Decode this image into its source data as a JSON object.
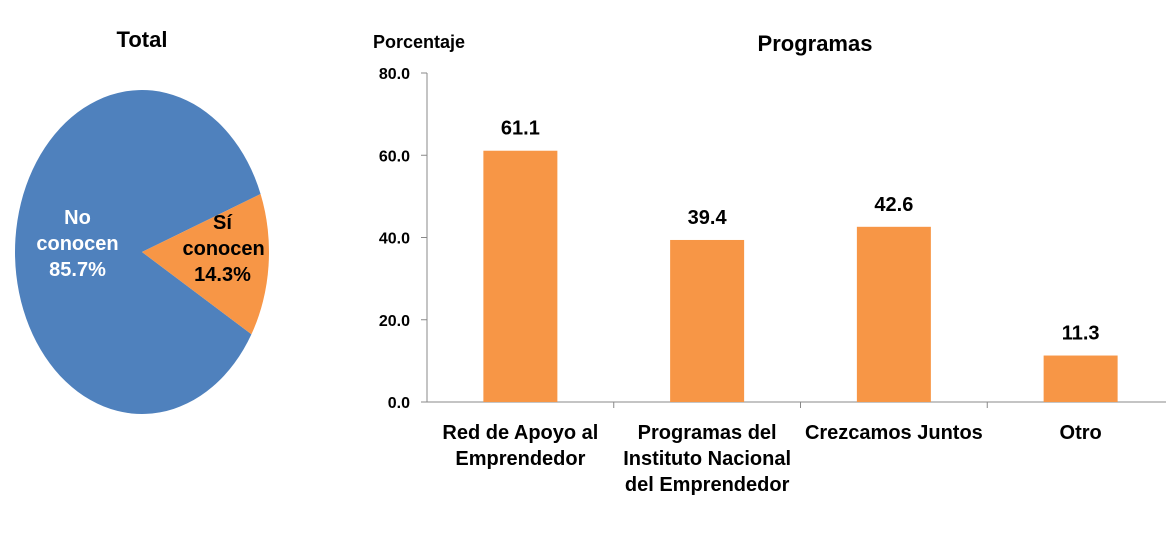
{
  "chart_data": [
    {
      "type": "pie",
      "title": "Total",
      "categories": [
        "No conocen",
        "Sí conocen"
      ],
      "values": [
        85.7,
        14.3
      ],
      "value_labels": [
        "85.7%",
        "14.3%"
      ],
      "colors": [
        "#4f81bd",
        "#f79646"
      ]
    },
    {
      "type": "bar",
      "title": "Programas",
      "y_label": "Porcentaje",
      "categories": [
        "Red de Apoyo al Emprendedor",
        "Programas del Instituto Nacional del Emprendedor",
        "Crezcamos Juntos",
        "Otro"
      ],
      "values": [
        61.1,
        39.4,
        42.6,
        11.3
      ],
      "color": "#f79646",
      "ylim": [
        0,
        80
      ],
      "yticks": [
        {
          "value": 0,
          "label": "0.0"
        },
        {
          "value": 20,
          "label": "20.0"
        },
        {
          "value": 40,
          "label": "40.0"
        },
        {
          "value": 60,
          "label": "60.0"
        },
        {
          "value": 80,
          "label": "80.0"
        }
      ]
    }
  ]
}
